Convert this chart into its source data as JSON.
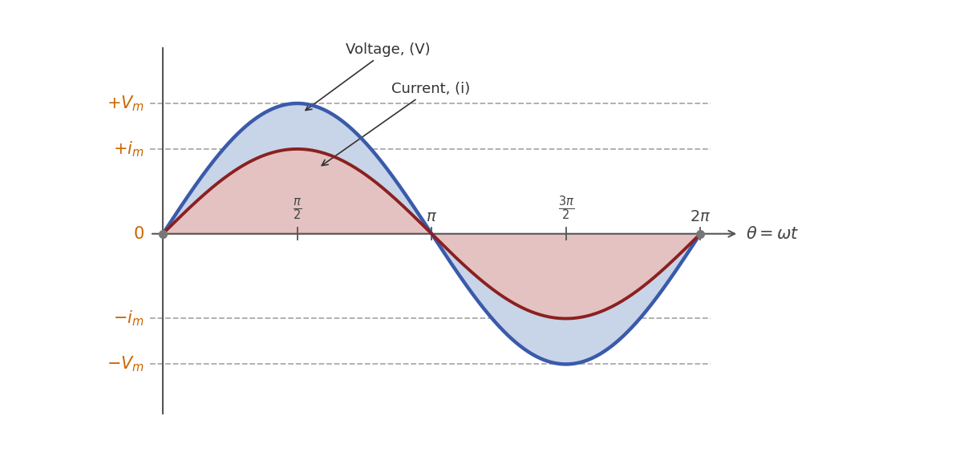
{
  "voltage_amplitude": 1.0,
  "current_amplitude": 0.65,
  "voltage_color": "#3a5aaa",
  "current_color": "#8b2020",
  "fill_voltage_color": "#c8d4e8",
  "fill_current_color": "#e8bfbb",
  "voltage_label": "Voltage, (V)",
  "current_label": "Current, (i)",
  "background_color": "#ffffff",
  "voltage_linewidth": 3.2,
  "current_linewidth": 2.8,
  "axis_color": "#555555",
  "label_color": "#cc6600",
  "tick_label_color": "#444444",
  "dash_color": "#aaaaaa",
  "annotation_color": "#333333"
}
